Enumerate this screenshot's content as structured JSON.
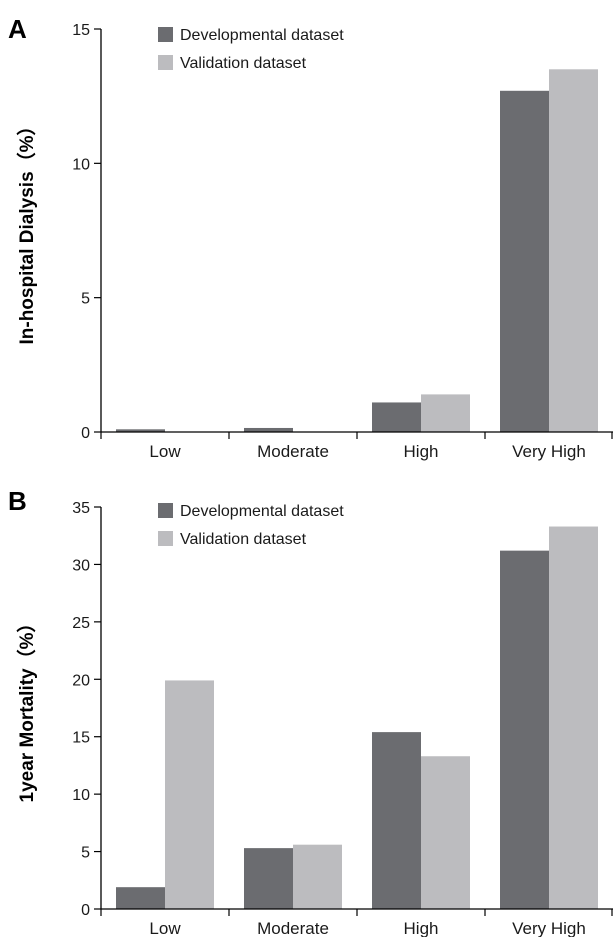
{
  "chart_data": [
    {
      "panel_label": "A",
      "type": "bar",
      "ylabel": "In-hospital Dialysis（%）",
      "categories": [
        "Low",
        "Moderate",
        "High",
        "Very High"
      ],
      "series": [
        {
          "name": "Developmental dataset",
          "color": "#6b6c70",
          "values": [
            0.1,
            0.15,
            1.1,
            12.7
          ]
        },
        {
          "name": "Validation dataset",
          "color": "#bcbcbf",
          "values": [
            0,
            0,
            1.4,
            13.5
          ]
        }
      ],
      "ylim": [
        0,
        15
      ],
      "yticks": [
        0,
        5,
        10,
        15
      ],
      "legend": "top-left"
    },
    {
      "panel_label": "B",
      "type": "bar",
      "ylabel": "1year Mortality（%）",
      "categories": [
        "Low",
        "Moderate",
        "High",
        "Very High"
      ],
      "series": [
        {
          "name": "Developmental dataset",
          "color": "#6b6c70",
          "values": [
            1.9,
            5.3,
            15.4,
            31.2
          ]
        },
        {
          "name": "Validation dataset",
          "color": "#bcbcbf",
          "values": [
            19.9,
            5.6,
            13.3,
            33.3
          ]
        }
      ],
      "ylim": [
        0,
        35
      ],
      "yticks": [
        0,
        5,
        10,
        15,
        20,
        25,
        30,
        35
      ],
      "legend": "top-left"
    }
  ]
}
